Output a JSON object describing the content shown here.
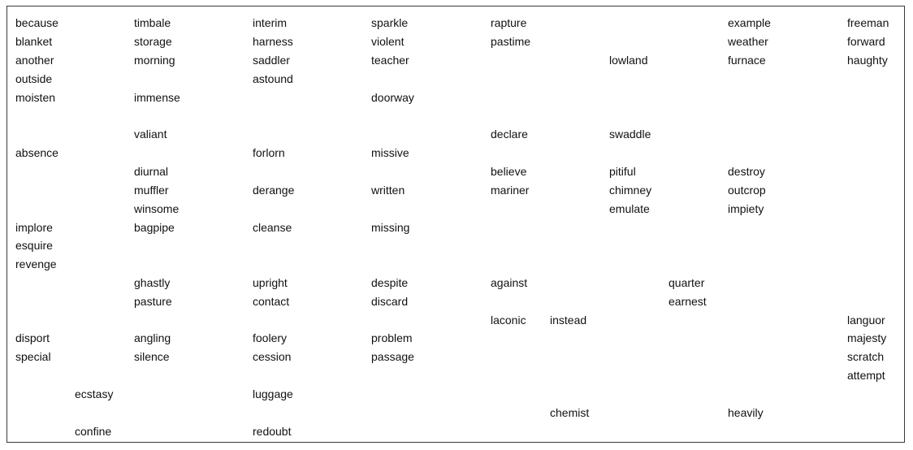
{
  "words": {
    "because": "because",
    "blanket": "blanket",
    "another": "another",
    "outside": "outside",
    "moisten": "moisten",
    "absence": "absence",
    "implore": "implore",
    "esquire": "esquire",
    "revenge": "revenge",
    "disport": "disport",
    "special": "special",
    "ecstasy": "ecstasy",
    "confine": "confine",
    "timbale": "timbale",
    "storage": "storage",
    "morning": "morning",
    "immense": "immense",
    "valiant": "valiant",
    "diurnal": "diurnal",
    "muffler": "muffler",
    "winsome": "winsome",
    "bagpipe": "bagpipe",
    "ghastly": "ghastly",
    "pasture": "pasture",
    "angling": "angling",
    "silence": "silence",
    "interim": "interim",
    "harness": "harness",
    "saddler": "saddler",
    "astound": "astound",
    "forlorn": "forlorn",
    "derange": "derange",
    "cleanse": "cleanse",
    "upright": "upright",
    "contact": "contact",
    "foolery": "foolery",
    "cession": "cession",
    "luggage": "luggage",
    "redoubt": "redoubt",
    "sparkle": "sparkle",
    "violent": "violent",
    "teacher": "teacher",
    "doorway": "doorway",
    "missive": "missive",
    "written": "written",
    "missing": "missing",
    "despite": "despite",
    "discard": "discard",
    "problem": "problem",
    "passage": "passage",
    "rapture": "rapture",
    "pastime": "pastime",
    "declare": "declare",
    "believe": "believe",
    "mariner": "mariner",
    "against": "against",
    "laconic": "laconic",
    "instead": "instead",
    "chemist": "chemist",
    "lowland": "lowland",
    "swaddle": "swaddle",
    "pitiful": "pitiful",
    "chimney": "chimney",
    "emulate": "emulate",
    "quarter": "quarter",
    "earnest": "earnest",
    "example": "example",
    "weather": "weather",
    "furnace": "furnace",
    "destroy": "destroy",
    "outcrop": "outcrop",
    "impiety": "impiety",
    "heavily": "heavily",
    "freeman": "freeman",
    "forward": "forward",
    "haughty": "haughty",
    "languor": "languor",
    "majesty": "majesty",
    "scratch": "scratch",
    "attempt": "attempt"
  }
}
